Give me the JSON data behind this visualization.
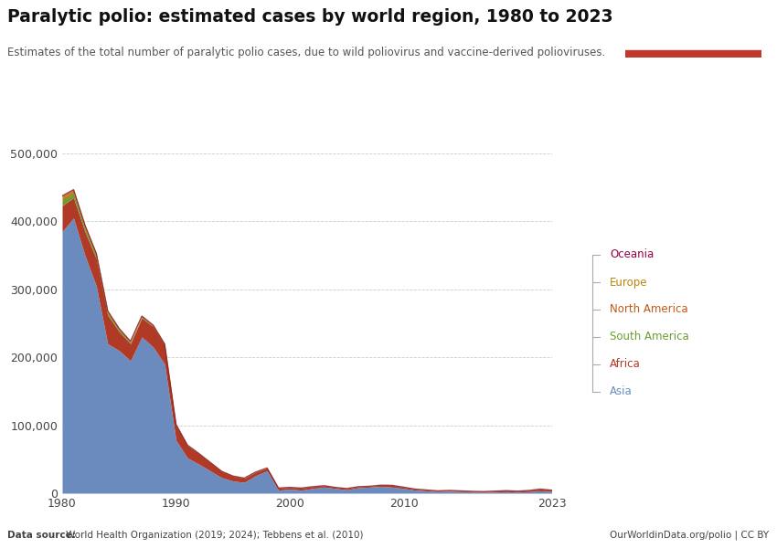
{
  "title": "Paralytic polio: estimated cases by world region, 1980 to 2023",
  "subtitle": "Estimates of the total number of paralytic polio cases, due to wild poliovirus and vaccine-derived polioviruses.",
  "datasource": "Data source: World Health Organization (2019; 2024); Tebbens et al. (2010)",
  "owid_url": "OurWorldinData.org/polio | CC BY",
  "years": [
    1980,
    1981,
    1982,
    1983,
    1984,
    1985,
    1986,
    1987,
    1988,
    1989,
    1990,
    1991,
    1992,
    1993,
    1994,
    1995,
    1996,
    1997,
    1998,
    1999,
    2000,
    2001,
    2002,
    2003,
    2004,
    2005,
    2006,
    2007,
    2008,
    2009,
    2010,
    2011,
    2012,
    2013,
    2014,
    2015,
    2016,
    2017,
    2018,
    2019,
    2020,
    2021,
    2022,
    2023
  ],
  "data": {
    "Asia": [
      385000,
      405000,
      350000,
      305000,
      220000,
      210000,
      195000,
      230000,
      215000,
      190000,
      78000,
      52000,
      43000,
      33000,
      23000,
      18000,
      16000,
      26000,
      33000,
      4500,
      6000,
      4500,
      7000,
      9000,
      7000,
      5000,
      8000,
      9000,
      10000,
      9000,
      7000,
      4500,
      3500,
      2500,
      3000,
      2500,
      1800,
      1300,
      1800,
      2200,
      1800,
      2200,
      3500,
      2600
    ],
    "Africa": [
      38000,
      30000,
      35000,
      40000,
      42000,
      28000,
      25000,
      28000,
      30000,
      28000,
      22000,
      18000,
      15000,
      12000,
      9000,
      7000,
      6000,
      5000,
      4000,
      3000,
      2500,
      3000,
      2500,
      2000,
      1500,
      1800,
      1500,
      1200,
      1800,
      2500,
      1800,
      1500,
      1200,
      900,
      1000,
      900,
      900,
      1000,
      1200,
      1500,
      1200,
      1800,
      2500,
      1800
    ],
    "South America": [
      8000,
      6000,
      5000,
      4000,
      3500,
      2500,
      2000,
      1500,
      1200,
      900,
      700,
      500,
      350,
      250,
      180,
      120,
      90,
      70,
      55,
      45,
      35,
      28,
      22,
      18,
      14,
      12,
      10,
      8,
      6,
      5,
      4,
      3,
      2,
      2,
      2,
      2,
      2,
      2,
      2,
      2,
      2,
      2,
      2,
      2
    ],
    "North America": [
      2500,
      2200,
      1800,
      1500,
      1100,
      800,
      600,
      450,
      350,
      230,
      170,
      120,
      90,
      70,
      55,
      45,
      35,
      28,
      22,
      18,
      12,
      10,
      8,
      6,
      5,
      4,
      4,
      3,
      3,
      3,
      3,
      3,
      3,
      3,
      3,
      3,
      3,
      3,
      3,
      3,
      3,
      3,
      3,
      3
    ],
    "Europe": [
      3500,
      3000,
      2400,
      1800,
      1400,
      950,
      700,
      580,
      460,
      340,
      230,
      170,
      110,
      85,
      65,
      52,
      42,
      32,
      22,
      16,
      11,
      9,
      7,
      6,
      5,
      4,
      3,
      3,
      3,
      3,
      3,
      3,
      3,
      3,
      3,
      3,
      3,
      3,
      3,
      3,
      3,
      3,
      3,
      3
    ],
    "Oceania": [
      500,
      450,
      370,
      300,
      250,
      190,
      150,
      120,
      95,
      70,
      45,
      35,
      28,
      20,
      15,
      12,
      10,
      8,
      6,
      5,
      4,
      3,
      3,
      3,
      3,
      3,
      3,
      3,
      3,
      3,
      3,
      3,
      3,
      3,
      3,
      3,
      3,
      3,
      3,
      3,
      3,
      3,
      3,
      3
    ]
  },
  "colors": {
    "Asia": "#6b8bbf",
    "Africa": "#b13a26",
    "South America": "#6b9e31",
    "North America": "#c05917",
    "Europe": "#b8860b",
    "Oceania": "#970046"
  },
  "legend_colors": {
    "Oceania": "#970046",
    "Europe": "#b8860b",
    "North America": "#c05917",
    "South America": "#6b9e31",
    "Africa": "#b13a26",
    "Asia": "#6b8bbf"
  },
  "ylim": [
    0,
    500000
  ],
  "yticks": [
    0,
    100000,
    200000,
    300000,
    400000,
    500000
  ],
  "ytick_labels": [
    "0",
    "100,000",
    "200,000",
    "300,000",
    "400,000",
    "500,000"
  ],
  "xticks": [
    1980,
    1990,
    2000,
    2010,
    2023
  ],
  "xtick_labels": [
    "1980",
    "1990",
    "2000",
    "2010",
    "2023"
  ],
  "background_color": "#ffffff",
  "owid_box_color": "#1a3a5c",
  "owid_box_accent": "#c0392b",
  "outline_color": "#8b2020"
}
